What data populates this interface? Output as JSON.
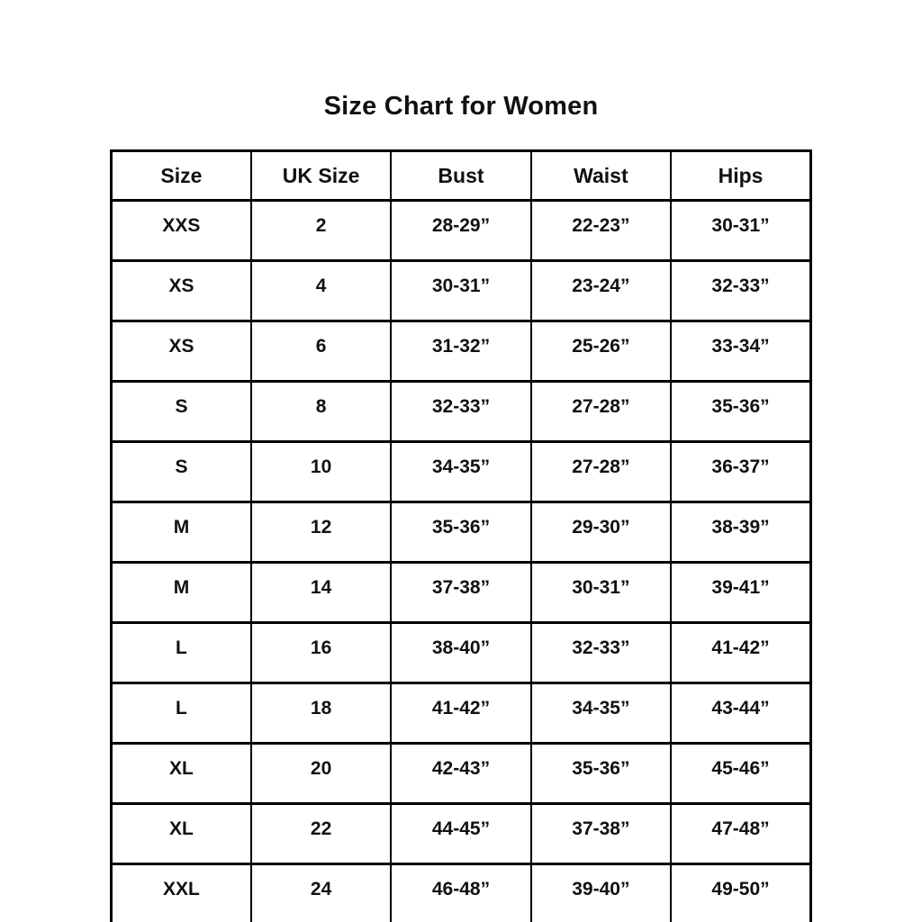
{
  "title": "Size Chart for Women",
  "colors": {
    "background": "#ffffff",
    "border": "#000000",
    "text": "#111111"
  },
  "table": {
    "headers": [
      "Size",
      "UK Size",
      "Bust",
      "Waist",
      "Hips"
    ],
    "rows": [
      [
        "XXS",
        "2",
        "28-29”",
        "22-23”",
        "30-31”"
      ],
      [
        "XS",
        "4",
        "30-31”",
        "23-24”",
        "32-33”"
      ],
      [
        "XS",
        "6",
        "31-32”",
        "25-26”",
        "33-34”"
      ],
      [
        "S",
        "8",
        "32-33”",
        "27-28”",
        "35-36”"
      ],
      [
        "S",
        "10",
        "34-35”",
        "27-28”",
        "36-37”"
      ],
      [
        "M",
        "12",
        "35-36”",
        "29-30”",
        "38-39”"
      ],
      [
        "M",
        "14",
        "37-38”",
        "30-31”",
        "39-41”"
      ],
      [
        "L",
        "16",
        "38-40”",
        "32-33”",
        "41-42”"
      ],
      [
        "L",
        "18",
        "41-42”",
        "34-35”",
        "43-44”"
      ],
      [
        "XL",
        "20",
        "42-43”",
        "35-36”",
        "45-46”"
      ],
      [
        "XL",
        "22",
        "44-45”",
        "37-38”",
        "47-48”"
      ],
      [
        "XXL",
        "24",
        "46-48”",
        "39-40”",
        "49-50”"
      ]
    ]
  }
}
